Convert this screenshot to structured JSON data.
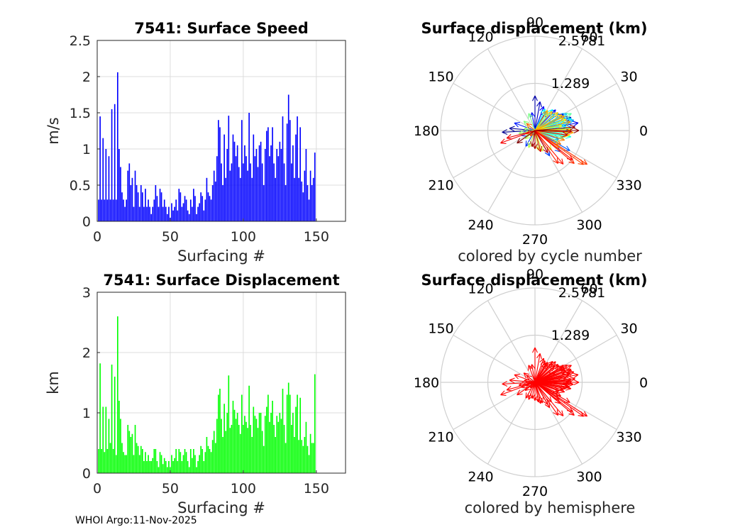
{
  "footer": "WHOI Argo:11-Nov-2025",
  "chart_data": [
    {
      "id": "speed",
      "type": "bar",
      "title": "7541: Surface Speed",
      "xlabel": "Surfacing #",
      "ylabel": "m/s",
      "xlim": [
        0,
        170
      ],
      "ylim": [
        0,
        2.5
      ],
      "xticks": [
        0,
        50,
        100,
        150
      ],
      "yticks": [
        0,
        0.5,
        1,
        1.5,
        2,
        2.5
      ],
      "yticklabels": [
        "0",
        "0.5",
        "1",
        "1.5",
        "2",
        "2.5"
      ],
      "grid": true,
      "color": "#0000ff",
      "values": [
        0.3,
        1.45,
        0.3,
        1.15,
        0.3,
        1.0,
        0.3,
        0.9,
        0.3,
        1.55,
        0.3,
        1.62,
        0.3,
        2.06,
        1.0,
        0.75,
        0.4,
        0.3,
        0.2,
        0.3,
        0.7,
        0.8,
        0.5,
        0.6,
        0.2,
        0.7,
        0.5,
        0.4,
        0.2,
        0.5,
        0.4,
        0.2,
        0.45,
        0.2,
        0.3,
        0.2,
        0.1,
        0.2,
        0.3,
        0.5,
        0.35,
        0.2,
        0.45,
        0.4,
        0.2,
        0.3,
        0.2,
        0.1,
        0.2,
        0.05,
        0.25,
        0.15,
        0.2,
        0.3,
        0.15,
        0.45,
        0.4,
        0.2,
        0.25,
        0.35,
        0.3,
        0.15,
        0.1,
        0.3,
        0.2,
        0.45,
        0.35,
        0.1,
        0.2,
        0.25,
        0.4,
        0.35,
        0.15,
        0.3,
        0.6,
        0.4,
        0.35,
        0.3,
        0.5,
        0.7,
        0.55,
        0.9,
        1.4,
        1.3,
        0.8,
        0.5,
        1.2,
        0.6,
        1.0,
        1.46,
        0.7,
        0.8,
        1.2,
        1.1,
        0.9,
        1.05,
        0.75,
        0.6,
        1.4,
        0.8,
        1.05,
        0.9,
        0.7,
        1.5,
        0.8,
        0.6,
        1.2,
        0.9,
        1.0,
        0.75,
        1.05,
        1.1,
        0.8,
        0.5,
        1.0,
        1.25,
        1.3,
        0.9,
        1.05,
        1.3,
        0.8,
        0.6,
        1.0,
        0.9,
        1.1,
        1.0,
        1.45,
        0.8,
        0.5,
        1.35,
        1.75,
        1.4,
        0.8,
        1.05,
        0.6,
        1.2,
        1.45,
        0.6,
        1.3,
        0.55,
        0.4,
        0.7,
        1.0,
        0.5,
        0.3,
        0.7,
        0.5,
        0.6,
        0.95
      ],
      "x_start": 1
    },
    {
      "id": "displacement",
      "type": "bar",
      "title": "7541: Surface Displacement",
      "xlabel": "Surfacing #",
      "ylabel": "km",
      "xlim": [
        0,
        170
      ],
      "ylim": [
        0,
        3
      ],
      "xticks": [
        0,
        50,
        100,
        150
      ],
      "yticks": [
        0,
        1,
        2,
        3
      ],
      "yticklabels": [
        "0",
        "1",
        "2",
        "3"
      ],
      "grid": true,
      "color": "#00ff00",
      "values": [
        0.4,
        1.82,
        0.4,
        1.1,
        0.35,
        1.1,
        0.4,
        0.9,
        0.5,
        1.8,
        0.4,
        1.6,
        0.3,
        2.6,
        1.2,
        0.9,
        0.5,
        0.35,
        0.3,
        0.3,
        0.8,
        0.7,
        0.6,
        0.65,
        0.3,
        0.8,
        0.5,
        0.45,
        0.3,
        0.45,
        0.4,
        0.2,
        0.35,
        0.2,
        0.3,
        0.2,
        0.2,
        0.25,
        0.4,
        0.4,
        0.2,
        0.1,
        0.35,
        0.3,
        0.15,
        0.25,
        0.2,
        0.1,
        0.2,
        0.1,
        0.3,
        0.2,
        0.25,
        0.4,
        0.2,
        0.4,
        0.35,
        0.2,
        0.3,
        0.4,
        0.35,
        0.2,
        0.1,
        0.4,
        0.25,
        0.4,
        0.3,
        0.1,
        0.2,
        0.3,
        0.45,
        0.4,
        0.2,
        0.35,
        0.6,
        0.45,
        0.4,
        0.35,
        0.55,
        0.7,
        0.5,
        0.9,
        1.3,
        1.4,
        0.9,
        0.6,
        1.15,
        0.7,
        1.0,
        1.62,
        0.75,
        0.8,
        1.2,
        1.05,
        0.9,
        1.0,
        0.8,
        0.65,
        1.3,
        0.8,
        0.95,
        0.85,
        0.75,
        1.45,
        0.8,
        0.6,
        1.1,
        0.95,
        0.9,
        0.75,
        1.0,
        1.0,
        0.7,
        0.45,
        0.95,
        1.1,
        1.3,
        0.85,
        1.0,
        1.2,
        0.8,
        0.6,
        0.95,
        0.85,
        1.0,
        0.9,
        1.4,
        0.8,
        0.5,
        1.3,
        1.5,
        1.3,
        0.8,
        1.0,
        0.6,
        1.1,
        1.3,
        0.55,
        1.25,
        0.55,
        0.45,
        0.6,
        0.85,
        0.45,
        0.3,
        0.65,
        0.5,
        0.5,
        1.64
      ],
      "x_start": 1
    },
    {
      "id": "polar-cycle",
      "type": "polar-compass",
      "title": "Surface displacement (km)",
      "caption": "colored by cycle number",
      "rmax": 2.5781,
      "rlabels": [
        "1.289",
        "2.5781"
      ],
      "angle_labels": [
        "0",
        "30",
        "60",
        "90",
        "120",
        "150",
        "180",
        "210",
        "240",
        "270",
        "300",
        "330"
      ],
      "coloring": "cycle",
      "arrows": [
        [
          0.9,
          183
        ],
        [
          0.7,
          175
        ],
        [
          0.95,
          90
        ],
        [
          1.05,
          20
        ],
        [
          0.8,
          80
        ],
        [
          0.6,
          60
        ],
        [
          0.9,
          30
        ],
        [
          1.0,
          15
        ],
        [
          1.2,
          10
        ],
        [
          0.8,
          45
        ],
        [
          0.7,
          70
        ],
        [
          0.5,
          100
        ],
        [
          0.6,
          160
        ],
        [
          0.4,
          200
        ],
        [
          0.5,
          240
        ],
        [
          0.8,
          -60
        ],
        [
          0.9,
          -40
        ],
        [
          1.1,
          -30
        ],
        [
          0.7,
          -20
        ],
        [
          0.9,
          0
        ],
        [
          1.0,
          5
        ],
        [
          0.6,
          25
        ],
        [
          0.8,
          35
        ],
        [
          1.1,
          15
        ],
        [
          0.9,
          22
        ],
        [
          1.0,
          28
        ],
        [
          0.7,
          40
        ],
        [
          0.95,
          12
        ],
        [
          0.85,
          8
        ],
        [
          1.05,
          18
        ],
        [
          0.75,
          50
        ],
        [
          0.65,
          65
        ],
        [
          0.9,
          -5
        ],
        [
          1.0,
          -10
        ],
        [
          0.8,
          -15
        ],
        [
          0.7,
          -25
        ],
        [
          0.85,
          -12
        ],
        [
          0.95,
          3
        ],
        [
          1.1,
          25
        ],
        [
          0.6,
          55
        ],
        [
          0.5,
          110
        ],
        [
          0.4,
          140
        ],
        [
          0.3,
          170
        ],
        [
          0.45,
          190
        ],
        [
          0.35,
          220
        ],
        [
          0.5,
          250
        ],
        [
          0.55,
          -80
        ],
        [
          0.6,
          -70
        ],
        [
          0.7,
          -50
        ],
        [
          0.8,
          -35
        ],
        [
          0.75,
          10
        ],
        [
          0.9,
          20
        ],
        [
          1.0,
          2
        ],
        [
          0.95,
          -8
        ],
        [
          0.85,
          30
        ],
        [
          0.8,
          38
        ],
        [
          0.7,
          48
        ],
        [
          0.65,
          58
        ],
        [
          1.05,
          -3
        ],
        [
          1.0,
          14
        ],
        [
          0.9,
          26
        ],
        [
          0.85,
          -18
        ],
        [
          0.8,
          -28
        ],
        [
          0.3,
          140
        ],
        [
          0.25,
          200
        ],
        [
          0.2,
          230
        ],
        [
          1.62,
          -35
        ],
        [
          1.7,
          -33
        ],
        [
          1.4,
          -40
        ],
        [
          1.1,
          -55
        ],
        [
          1.2,
          -50
        ],
        [
          1.3,
          -38
        ],
        [
          1.0,
          200
        ],
        [
          0.8,
          195
        ],
        [
          0.6,
          -75
        ],
        [
          0.9,
          -8
        ],
        [
          1.0,
          -2
        ],
        [
          0.7,
          -60
        ],
        [
          0.5,
          -90
        ],
        [
          0.45,
          -100
        ],
        [
          1.1,
          5
        ],
        [
          1.2,
          0
        ],
        [
          0.6,
          215
        ]
      ]
    },
    {
      "id": "polar-hemisphere",
      "type": "polar-compass",
      "title": "Surface displacement (km)",
      "caption": "colored by hemisphere",
      "rmax": 2.5781,
      "rlabels": [
        "1.289",
        "2.5781"
      ],
      "angle_labels": [
        "0",
        "30",
        "60",
        "90",
        "120",
        "150",
        "180",
        "210",
        "240",
        "270",
        "300",
        "330"
      ],
      "coloring": "hemisphere",
      "arrows": "same"
    }
  ]
}
